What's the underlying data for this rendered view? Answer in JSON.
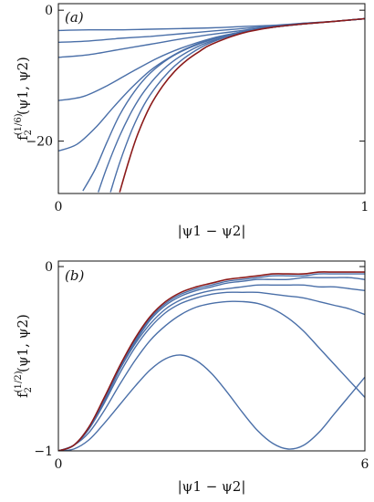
{
  "figure_label": "Two-panel figure of f2 versus |psi1 - psi2|",
  "colors": {
    "curve": "#4a6fa8",
    "limit_curve": "#8b1a1a",
    "lightblue": "#38a9d9"
  },
  "chart_data": [
    {
      "type": "line",
      "panel_label": "(a)",
      "ylabel_main": "f",
      "ylabel_sub": "2",
      "ylabel_sup": "(1/6)",
      "ylabel_args": "(ψ1, ψ2)",
      "xlabel": "|ψ1 − ψ2|",
      "xlim": [
        0,
        1
      ],
      "ylim": [
        -28,
        1
      ],
      "xticks": [
        {
          "value": 0,
          "label": "0"
        },
        {
          "value": 1,
          "label": "1"
        }
      ],
      "yticks": [
        {
          "value": 0,
          "label": "0"
        },
        {
          "value": -20,
          "label": "−20"
        }
      ],
      "series": [
        {
          "x": [
            0,
            0.1,
            0.2,
            0.3,
            0.4,
            0.5,
            0.6,
            0.7,
            0.8,
            0.9,
            1
          ],
          "values": [
            -3.1,
            -3.0,
            -3.0,
            -2.9,
            -2.8,
            -2.7,
            -2.5,
            -2.3,
            -2.0,
            -1.7,
            -1.3
          ]
        },
        {
          "x": [
            0,
            0.1,
            0.2,
            0.3,
            0.4,
            0.5,
            0.6,
            0.7,
            0.8,
            0.9,
            1
          ],
          "values": [
            -4.9,
            -4.7,
            -4.3,
            -4.0,
            -3.6,
            -3.2,
            -2.8,
            -2.4,
            -2.0,
            -1.7,
            -1.3
          ]
        },
        {
          "x": [
            0,
            0.1,
            0.2,
            0.3,
            0.4,
            0.5,
            0.6,
            0.7,
            0.8,
            0.9,
            1
          ],
          "values": [
            -7.2,
            -6.8,
            -6.0,
            -5.2,
            -4.4,
            -3.7,
            -3.1,
            -2.5,
            -2.1,
            -1.7,
            -1.3
          ]
        },
        {
          "x": [
            0,
            0.08,
            0.16,
            0.24,
            0.32,
            0.4,
            0.5,
            0.6,
            0.7,
            0.8,
            0.9,
            1
          ],
          "values": [
            -13.8,
            -13.2,
            -11.5,
            -9.4,
            -7.4,
            -5.8,
            -4.3,
            -3.3,
            -2.6,
            -2.1,
            -1.7,
            -1.3
          ]
        },
        {
          "x": [
            0,
            0.06,
            0.12,
            0.18,
            0.24,
            0.3,
            0.36,
            0.42,
            0.5,
            0.6,
            0.7,
            0.8,
            0.9,
            1
          ],
          "values": [
            -21.5,
            -20.5,
            -18.0,
            -14.8,
            -11.8,
            -9.2,
            -7.3,
            -5.8,
            -4.4,
            -3.3,
            -2.6,
            -2.1,
            -1.7,
            -1.3
          ]
        },
        {
          "x": [
            0.08,
            0.12,
            0.16,
            0.2,
            0.25,
            0.3,
            0.36,
            0.42,
            0.5,
            0.6,
            0.7,
            0.8,
            0.9,
            1
          ],
          "values": [
            -27.6,
            -24.3,
            -20.0,
            -16.0,
            -12.3,
            -9.6,
            -7.4,
            -5.9,
            -4.5,
            -3.3,
            -2.6,
            -2.1,
            -1.7,
            -1.3
          ]
        },
        {
          "x": [
            0.13,
            0.16,
            0.2,
            0.24,
            0.28,
            0.33,
            0.38,
            0.44,
            0.5,
            0.6,
            0.7,
            0.8,
            0.9,
            1
          ],
          "values": [
            -27.8,
            -23.8,
            -19.2,
            -15.4,
            -12.4,
            -9.6,
            -7.6,
            -5.9,
            -4.7,
            -3.4,
            -2.6,
            -2.1,
            -1.7,
            -1.3
          ]
        },
        {
          "x": [
            0.17,
            0.2,
            0.24,
            0.28,
            0.32,
            0.36,
            0.4,
            0.45,
            0.5,
            0.6,
            0.7,
            0.8,
            0.9,
            1
          ],
          "values": [
            -27.8,
            -23.3,
            -18.3,
            -14.4,
            -11.6,
            -9.4,
            -7.7,
            -6.1,
            -4.9,
            -3.4,
            -2.6,
            -2.1,
            -1.7,
            -1.3
          ]
        },
        {
          "x": [
            0.2,
            0.23,
            0.26,
            0.3,
            0.34,
            0.38,
            0.42,
            0.46,
            0.5,
            0.6,
            0.7,
            0.8,
            0.9,
            1
          ],
          "values": [
            -27.8,
            -23.0,
            -18.8,
            -14.6,
            -11.6,
            -9.3,
            -7.6,
            -6.3,
            -5.2,
            -3.5,
            -2.6,
            -2.1,
            -1.7,
            -1.3
          ],
          "limit": true
        }
      ]
    },
    {
      "type": "line",
      "panel_label": "(b)",
      "ylabel_main": "f",
      "ylabel_sub": "2",
      "ylabel_sup": "(1/2)",
      "ylabel_args": "(ψ1, ψ2)",
      "xlabel": "|ψ1 − ψ2|",
      "xlim": [
        0,
        6
      ],
      "ylim": [
        -1,
        0.03
      ],
      "xticks": [
        {
          "value": 0,
          "label": "0"
        },
        {
          "value": 6,
          "label": "6"
        }
      ],
      "yticks": [
        {
          "value": 0,
          "label": "0"
        },
        {
          "value": -1,
          "label": "−1"
        }
      ],
      "series": [
        {
          "x": [
            0,
            0.3,
            0.6,
            0.9,
            1.2,
            1.5,
            1.8,
            2.1,
            2.4,
            2.7,
            3.0,
            3.3,
            3.6,
            3.9,
            4.2,
            4.5,
            4.8,
            5.1,
            5.4,
            5.7,
            6.0
          ],
          "values": [
            -1,
            -0.99,
            -0.94,
            -0.85,
            -0.75,
            -0.65,
            -0.56,
            -0.5,
            -0.48,
            -0.51,
            -0.58,
            -0.68,
            -0.79,
            -0.89,
            -0.96,
            -0.99,
            -0.97,
            -0.9,
            -0.8,
            -0.7,
            -0.6
          ]
        },
        {
          "x": [
            0,
            0.3,
            0.6,
            0.9,
            1.2,
            1.5,
            1.8,
            2.1,
            2.4,
            2.7,
            3.0,
            3.3,
            3.6,
            3.9,
            4.2,
            4.5,
            4.8,
            5.1,
            5.4,
            5.7,
            6.0
          ],
          "values": [
            -1,
            -0.97,
            -0.9,
            -0.78,
            -0.64,
            -0.51,
            -0.4,
            -0.32,
            -0.26,
            -0.22,
            -0.2,
            -0.19,
            -0.19,
            -0.2,
            -0.23,
            -0.28,
            -0.35,
            -0.44,
            -0.53,
            -0.62,
            -0.71
          ]
        },
        {
          "x": [
            0,
            0.3,
            0.6,
            0.9,
            1.2,
            1.5,
            1.8,
            2.1,
            2.4,
            2.7,
            3.0,
            3.3,
            3.6,
            3.9,
            4.2,
            4.5,
            4.8,
            5.1,
            5.4,
            5.7,
            6.0
          ],
          "values": [
            -1,
            -0.97,
            -0.88,
            -0.74,
            -0.58,
            -0.44,
            -0.33,
            -0.25,
            -0.2,
            -0.17,
            -0.15,
            -0.14,
            -0.14,
            -0.14,
            -0.15,
            -0.16,
            -0.17,
            -0.19,
            -0.21,
            -0.23,
            -0.26
          ]
        },
        {
          "x": [
            0,
            0.3,
            0.6,
            0.9,
            1.2,
            1.5,
            1.8,
            2.1,
            2.4,
            2.7,
            3.0,
            3.3,
            3.6,
            3.9,
            4.2,
            4.5,
            4.8,
            5.1,
            5.4,
            5.7,
            6.0
          ],
          "values": [
            -1,
            -0.97,
            -0.88,
            -0.73,
            -0.56,
            -0.42,
            -0.31,
            -0.23,
            -0.18,
            -0.15,
            -0.13,
            -0.12,
            -0.11,
            -0.1,
            -0.1,
            -0.1,
            -0.1,
            -0.11,
            -0.11,
            -0.12,
            -0.13
          ]
        },
        {
          "x": [
            0,
            0.3,
            0.6,
            0.9,
            1.2,
            1.5,
            1.8,
            2.1,
            2.4,
            2.7,
            3.0,
            3.3,
            3.6,
            3.9,
            4.2,
            4.5,
            4.8,
            5.1,
            5.4,
            5.7,
            6.0
          ],
          "values": [
            -1,
            -0.97,
            -0.87,
            -0.72,
            -0.55,
            -0.41,
            -0.29,
            -0.21,
            -0.16,
            -0.13,
            -0.11,
            -0.09,
            -0.08,
            -0.07,
            -0.07,
            -0.07,
            -0.06,
            -0.06,
            -0.06,
            -0.06,
            -0.07
          ]
        },
        {
          "x": [
            0,
            0.3,
            0.6,
            0.9,
            1.2,
            1.5,
            1.8,
            2.1,
            2.4,
            2.7,
            3.0,
            3.3,
            3.6,
            3.9,
            4.2,
            4.5,
            4.8,
            5.1,
            5.4,
            5.7,
            6.0
          ],
          "values": [
            -1,
            -0.97,
            -0.87,
            -0.72,
            -0.54,
            -0.4,
            -0.28,
            -0.2,
            -0.15,
            -0.12,
            -0.1,
            -0.08,
            -0.07,
            -0.06,
            -0.05,
            -0.05,
            -0.05,
            -0.04,
            -0.04,
            -0.04,
            -0.04
          ]
        },
        {
          "x": [
            0,
            0.3,
            0.6,
            0.9,
            1.2,
            1.5,
            1.8,
            2.1,
            2.4,
            2.7,
            3.0,
            3.3,
            3.6,
            3.9,
            4.2,
            4.5,
            4.8,
            5.1,
            5.4,
            5.7,
            6.0
          ],
          "values": [
            -1,
            -0.97,
            -0.87,
            -0.71,
            -0.54,
            -0.39,
            -0.27,
            -0.19,
            -0.14,
            -0.11,
            -0.09,
            -0.07,
            -0.06,
            -0.05,
            -0.04,
            -0.04,
            -0.04,
            -0.03,
            -0.03,
            -0.03,
            -0.03
          ],
          "limit": true
        }
      ]
    }
  ]
}
